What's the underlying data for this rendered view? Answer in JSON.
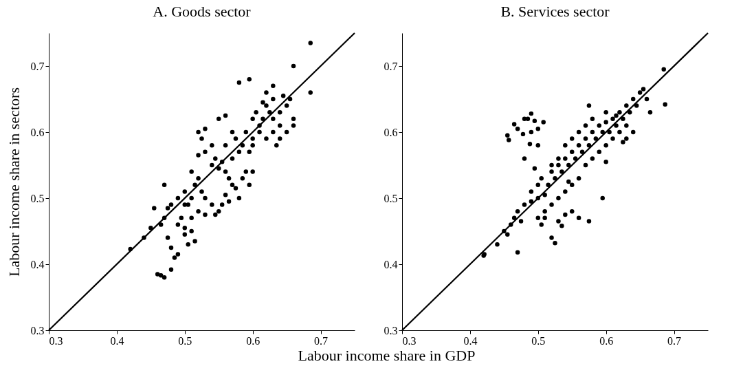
{
  "chart_data": [
    {
      "type": "scatter",
      "title": "A. Goods sector",
      "xlabel": "Labour income share in GDP",
      "ylabel": "Labour income share in sectors",
      "xlim": [
        0.3,
        0.75
      ],
      "ylim": [
        0.3,
        0.75
      ],
      "xticks": [
        0.3,
        0.4,
        0.5,
        0.6,
        0.7
      ],
      "yticks": [
        0.3,
        0.4,
        0.5,
        0.6,
        0.7
      ],
      "grid": false,
      "series": [
        {
          "type": "scatter",
          "color": "#000000",
          "marker": "circle",
          "x": [
            0.685,
            0.66,
            0.685,
            0.58,
            0.595,
            0.42,
            0.44,
            0.46,
            0.465,
            0.47,
            0.48,
            0.47,
            0.455,
            0.45,
            0.475,
            0.48,
            0.49,
            0.485,
            0.5,
            0.5,
            0.505,
            0.51,
            0.515,
            0.49,
            0.495,
            0.48,
            0.49,
            0.5,
            0.5,
            0.51,
            0.515,
            0.52,
            0.51,
            0.525,
            0.53,
            0.52,
            0.53,
            0.54,
            0.545,
            0.55,
            0.555,
            0.52,
            0.53,
            0.525,
            0.54,
            0.53,
            0.545,
            0.55,
            0.56,
            0.52,
            0.54,
            0.55,
            0.56,
            0.555,
            0.56,
            0.57,
            0.575,
            0.58,
            0.585,
            0.59,
            0.57,
            0.565,
            0.57,
            0.575,
            0.58,
            0.585,
            0.59,
            0.595,
            0.6,
            0.56,
            0.565,
            0.6,
            0.605,
            0.61,
            0.615,
            0.62,
            0.625,
            0.63,
            0.62,
            0.63,
            0.6,
            0.61,
            0.62,
            0.63,
            0.64,
            0.64,
            0.65,
            0.655,
            0.66,
            0.65,
            0.66,
            0.64,
            0.635,
            0.6,
            0.595,
            0.63,
            0.645,
            0.615,
            0.47,
            0.475,
            0.465,
            0.505,
            0.51
          ],
          "values": [
            0.735,
            0.7,
            0.66,
            0.675,
            0.68,
            0.423,
            0.44,
            0.385,
            0.383,
            0.38,
            0.392,
            0.52,
            0.485,
            0.455,
            0.44,
            0.425,
            0.415,
            0.41,
            0.445,
            0.455,
            0.43,
            0.45,
            0.435,
            0.46,
            0.47,
            0.49,
            0.5,
            0.49,
            0.51,
            0.5,
            0.52,
            0.53,
            0.54,
            0.51,
            0.5,
            0.48,
            0.475,
            0.49,
            0.475,
            0.48,
            0.49,
            0.6,
            0.605,
            0.59,
            0.58,
            0.57,
            0.56,
            0.62,
            0.625,
            0.565,
            0.55,
            0.545,
            0.54,
            0.555,
            0.58,
            0.6,
            0.59,
            0.57,
            0.58,
            0.6,
            0.56,
            0.53,
            0.52,
            0.515,
            0.5,
            0.53,
            0.54,
            0.52,
            0.54,
            0.505,
            0.495,
            0.62,
            0.63,
            0.61,
            0.62,
            0.64,
            0.63,
            0.65,
            0.66,
            0.67,
            0.59,
            0.6,
            0.59,
            0.6,
            0.61,
            0.63,
            0.64,
            0.65,
            0.62,
            0.6,
            0.61,
            0.59,
            0.58,
            0.58,
            0.57,
            0.62,
            0.655,
            0.645,
            0.47,
            0.485,
            0.46,
            0.49,
            0.47
          ]
        },
        {
          "type": "line",
          "color": "#000000",
          "x": [
            0.3,
            0.75
          ],
          "values": [
            0.3,
            0.75
          ]
        }
      ]
    },
    {
      "type": "scatter",
      "title": "B. Services sector",
      "xlim": [
        0.3,
        0.75
      ],
      "ylim": [
        0.3,
        0.75
      ],
      "xticks": [
        0.3,
        0.4,
        0.5,
        0.6,
        0.7
      ],
      "yticks": [
        0.3,
        0.4,
        0.5,
        0.6,
        0.7
      ],
      "grid": false,
      "series": [
        {
          "type": "scatter",
          "color": "#000000",
          "marker": "circle",
          "x": [
            0.42,
            0.421,
            0.44,
            0.45,
            0.455,
            0.46,
            0.47,
            0.465,
            0.47,
            0.475,
            0.455,
            0.457,
            0.465,
            0.47,
            0.48,
            0.485,
            0.49,
            0.495,
            0.5,
            0.49,
            0.478,
            0.508,
            0.488,
            0.5,
            0.48,
            0.495,
            0.5,
            0.505,
            0.52,
            0.525,
            0.53,
            0.535,
            0.54,
            0.55,
            0.56,
            0.575,
            0.595,
            0.51,
            0.48,
            0.49,
            0.5,
            0.49,
            0.5,
            0.51,
            0.505,
            0.515,
            0.52,
            0.525,
            0.53,
            0.535,
            0.54,
            0.545,
            0.55,
            0.555,
            0.56,
            0.565,
            0.57,
            0.575,
            0.58,
            0.585,
            0.59,
            0.595,
            0.6,
            0.605,
            0.61,
            0.615,
            0.62,
            0.625,
            0.63,
            0.635,
            0.64,
            0.645,
            0.65,
            0.655,
            0.66,
            0.63,
            0.62,
            0.61,
            0.6,
            0.59,
            0.58,
            0.57,
            0.56,
            0.55,
            0.54,
            0.53,
            0.52,
            0.51,
            0.56,
            0.57,
            0.58,
            0.575,
            0.55,
            0.54,
            0.53,
            0.545,
            0.52,
            0.6,
            0.625,
            0.63,
            0.665,
            0.685,
            0.687,
            0.64,
            0.615,
            0.6
          ],
          "values": [
            0.413,
            0.415,
            0.43,
            0.45,
            0.445,
            0.46,
            0.418,
            0.47,
            0.48,
            0.465,
            0.595,
            0.588,
            0.612,
            0.605,
            0.62,
            0.62,
            0.628,
            0.617,
            0.605,
            0.6,
            0.597,
            0.615,
            0.582,
            0.58,
            0.56,
            0.545,
            0.47,
            0.46,
            0.44,
            0.432,
            0.465,
            0.458,
            0.475,
            0.48,
            0.47,
            0.465,
            0.5,
            0.47,
            0.49,
            0.495,
            0.5,
            0.51,
            0.52,
            0.505,
            0.53,
            0.52,
            0.54,
            0.53,
            0.55,
            0.54,
            0.56,
            0.55,
            0.57,
            0.56,
            0.58,
            0.57,
            0.59,
            0.58,
            0.6,
            0.59,
            0.61,
            0.6,
            0.615,
            0.6,
            0.62,
            0.61,
            0.63,
            0.62,
            0.64,
            0.63,
            0.65,
            0.64,
            0.66,
            0.665,
            0.65,
            0.61,
            0.6,
            0.59,
            0.58,
            0.57,
            0.56,
            0.55,
            0.53,
            0.52,
            0.51,
            0.5,
            0.49,
            0.48,
            0.6,
            0.61,
            0.62,
            0.64,
            0.59,
            0.58,
            0.56,
            0.525,
            0.55,
            0.555,
            0.585,
            0.59,
            0.63,
            0.695,
            0.642,
            0.6,
            0.625,
            0.63
          ]
        },
        {
          "type": "line",
          "color": "#000000",
          "x": [
            0.3,
            0.75
          ],
          "values": [
            0.3,
            0.75
          ]
        }
      ]
    }
  ]
}
